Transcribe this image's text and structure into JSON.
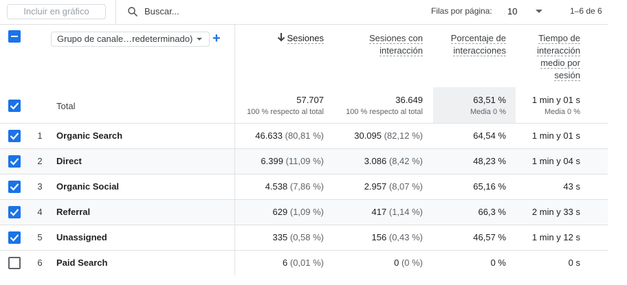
{
  "toolbar": {
    "chart_button": "Incluir en gráfico",
    "search_placeholder": "Buscar...",
    "rows_per_page_label": "Filas por página:",
    "rows_per_page_value": "10",
    "pagination": "1–6 de 6"
  },
  "dimension_dropdown": "Grupo de canale…redeterminado)",
  "columns": [
    {
      "lines": [
        "Sesiones"
      ],
      "sorted": true
    },
    {
      "lines": [
        "Sesiones con",
        "interacción"
      ]
    },
    {
      "lines": [
        "Porcentaje de",
        "interacciones"
      ]
    },
    {
      "lines": [
        "Tiempo de",
        "interacción",
        "medio por",
        "sesión"
      ]
    }
  ],
  "totals": {
    "label": "Total",
    "sessions": "57.707",
    "sessions_sub": "100 % respecto al total",
    "engaged": "36.649",
    "engaged_sub": "100 % respecto al total",
    "rate": "63,51 %",
    "rate_sub": "Media 0 %",
    "time": "1 min y 01 s",
    "time_sub": "Media 0 %"
  },
  "rows": [
    {
      "index": "1",
      "channel": "Organic Search",
      "sessions": "46.633",
      "sessions_pct": "(80,81 %)",
      "engaged": "30.095",
      "engaged_pct": "(82,12 %)",
      "rate": "64,54 %",
      "time": "1 min y 01 s",
      "checked": true
    },
    {
      "index": "2",
      "channel": "Direct",
      "sessions": "6.399",
      "sessions_pct": "(11,09 %)",
      "engaged": "3.086",
      "engaged_pct": "(8,42 %)",
      "rate": "48,23 %",
      "time": "1 min y 04 s",
      "checked": true
    },
    {
      "index": "3",
      "channel": "Organic Social",
      "sessions": "4.538",
      "sessions_pct": "(7,86 %)",
      "engaged": "2.957",
      "engaged_pct": "(8,07 %)",
      "rate": "65,16 %",
      "time": "43 s",
      "checked": true
    },
    {
      "index": "4",
      "channel": "Referral",
      "sessions": "629",
      "sessions_pct": "(1,09 %)",
      "engaged": "417",
      "engaged_pct": "(1,14 %)",
      "rate": "66,3 %",
      "time": "2 min y 33 s",
      "checked": true
    },
    {
      "index": "5",
      "channel": "Unassigned",
      "sessions": "335",
      "sessions_pct": "(0,58 %)",
      "engaged": "156",
      "engaged_pct": "(0,43 %)",
      "rate": "46,57 %",
      "time": "1 min y 12 s",
      "checked": true
    },
    {
      "index": "6",
      "channel": "Paid Search",
      "sessions": "6",
      "sessions_pct": "(0,01 %)",
      "engaged": "0",
      "engaged_pct": "(0 %)",
      "rate": "0 %",
      "time": "0 s",
      "checked": false
    }
  ],
  "colors": {
    "accent": "#1a73e8",
    "highlight": "#eef0f2"
  },
  "icons": [
    "search-icon",
    "minus-checkbox-icon",
    "check-icon",
    "sort-down-arrow-icon",
    "plus-icon",
    "chevron-down-icon"
  ]
}
